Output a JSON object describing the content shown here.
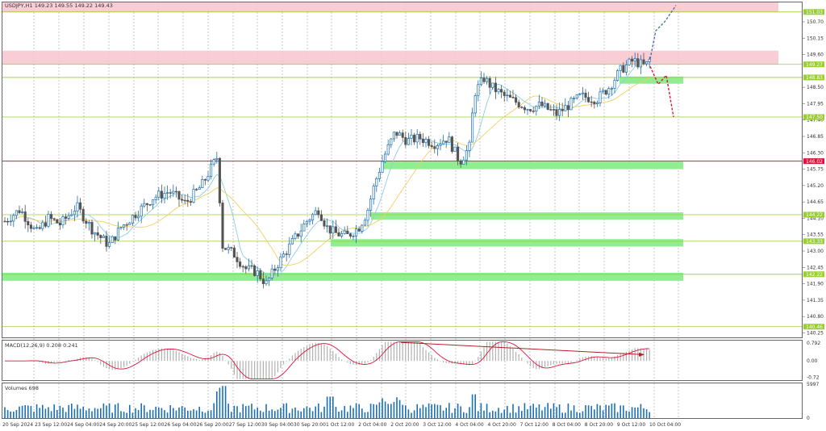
{
  "chart_data": {
    "type": "candlestick",
    "title": "USDJPY,H1  149.23 149.55 149.22 149.43",
    "price_axis": {
      "range": [
        140.1,
        151.35
      ],
      "ticks": [
        "150.70",
        "150.15",
        "149.60",
        "148.50",
        "147.95",
        "147.40",
        "146.85",
        "146.30",
        "145.75",
        "145.20",
        "144.65",
        "144.10",
        "143.55",
        "143.00",
        "142.45",
        "141.90",
        "141.35",
        "140.80",
        "140.25"
      ]
    },
    "time_axis": {
      "labels": [
        "20 Sep 2024",
        "23 Sep 12:00",
        "24 Sep 04:00",
        "24 Sep 20:00",
        "25 Sep 12:00",
        "26 Sep 04:00",
        "26 Sep 20:00",
        "27 Sep 12:00",
        "30 Sep 04:00",
        "30 Sep 20:00",
        "1 Oct 12:00",
        "2 Oct 04:00",
        "2 Oct 20:00",
        "3 Oct 12:00",
        "4 Oct 04:00",
        "4 Oct 20:00",
        "7 Oct 12:00",
        "8 Oct 04:00",
        "8 Oct 20:00",
        "9 Oct 12:00",
        "10 Oct 04:00"
      ]
    },
    "level_badges": [
      {
        "label": "151.03",
        "value": 151.03,
        "color": "#9acd32"
      },
      {
        "label": "149.27",
        "value": 149.27,
        "color": "#9acd32"
      },
      {
        "label": "148.83",
        "value": 148.83,
        "color": "#9acd32"
      },
      {
        "label": "147.50",
        "value": 147.5,
        "color": "#9acd32"
      },
      {
        "label": "146.02",
        "value": 146.02,
        "color": "#dc143c"
      },
      {
        "label": "144.22",
        "value": 144.22,
        "color": "#9acd32"
      },
      {
        "label": "143.33",
        "value": 143.33,
        "color": "#9acd32"
      },
      {
        "label": "142.22",
        "value": 142.22,
        "color": "#9acd32"
      },
      {
        "label": "140.46",
        "value": 140.46,
        "color": "#9acd32"
      }
    ],
    "resistance_zones": [
      {
        "from": 151.03,
        "to": 151.35,
        "color": "#f8c8d0"
      },
      {
        "from": 149.27,
        "to": 149.73,
        "color": "#f8c8d0"
      }
    ],
    "support_zones": [
      {
        "from": 148.62,
        "to": 148.86,
        "color": "#90ee90"
      },
      {
        "from": 145.75,
        "to": 146.0,
        "color": "#90ee90"
      },
      {
        "from": 144.05,
        "to": 144.3,
        "color": "#90ee90"
      },
      {
        "from": 143.15,
        "to": 143.4,
        "color": "#90ee90"
      },
      {
        "from": 142.0,
        "to": 142.27,
        "color": "#90ee90"
      }
    ],
    "forecast_up": [
      [
        149.45,
        149.45
      ],
      [
        151.0,
        150.4
      ],
      [
        151.2,
        150.7
      ],
      [
        151.4,
        151.25
      ]
    ],
    "forecast_down": [
      [
        149.45,
        149.2
      ],
      [
        148.85,
        148.6
      ],
      [
        148.6,
        148.9
      ],
      [
        147.6,
        147.5
      ]
    ],
    "macd": {
      "label": "MACD(12,26,9) 0.208 0.241",
      "ticks": [
        "0.792",
        "0.00",
        "-0.72"
      ],
      "range": [
        -0.85,
        0.9
      ]
    },
    "volumes": {
      "label": "Volumes 698",
      "ticks": [
        "5997",
        "0"
      ],
      "max": 5997
    },
    "colors": {
      "bull_candle": "#1a6fb5",
      "bear_candle": "#555555",
      "ma_fast": "#87ceeb",
      "ma_slow": "#f0d060",
      "macd_hist": "#b0b0b0",
      "macd_signal": "#dc143c",
      "volume_bar": "#1a6fb5",
      "divergence_line": "#b22222",
      "forecast_up": "#4a6fa5",
      "forecast_down": "#dc143c",
      "grid": "#a0a0a0"
    }
  }
}
